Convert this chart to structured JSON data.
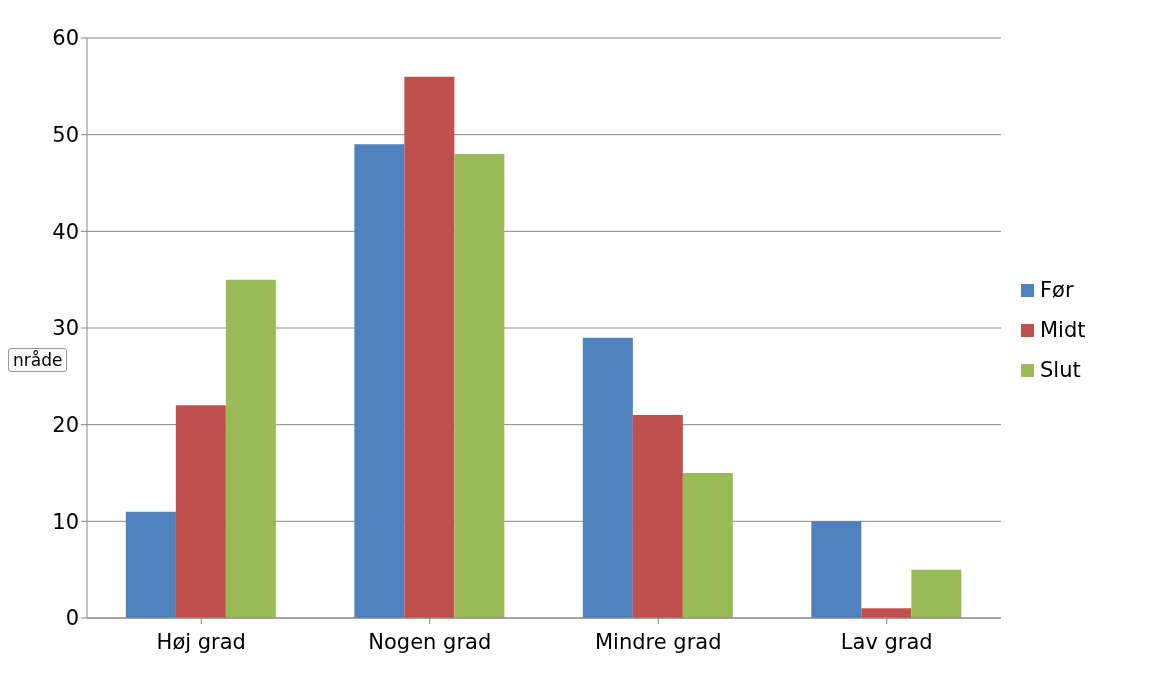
{
  "chart_data": {
    "type": "bar",
    "categories": [
      "Høj grad",
      "Nogen grad",
      "Mindre grad",
      "Lav grad"
    ],
    "series": [
      {
        "name": "Før",
        "color": "#4f81bd",
        "values": [
          11,
          49,
          29,
          10
        ]
      },
      {
        "name": "Midt",
        "color": "#c0504d",
        "values": [
          22,
          56,
          21,
          1
        ]
      },
      {
        "name": "Slut",
        "color": "#9bbb59",
        "values": [
          35,
          48,
          15,
          5
        ]
      }
    ],
    "ylim": [
      0,
      60
    ],
    "yticks": [
      0,
      10,
      20,
      30,
      40,
      50,
      60
    ],
    "grid": "y",
    "legend": "right",
    "annotations": [
      "nråde"
    ]
  }
}
